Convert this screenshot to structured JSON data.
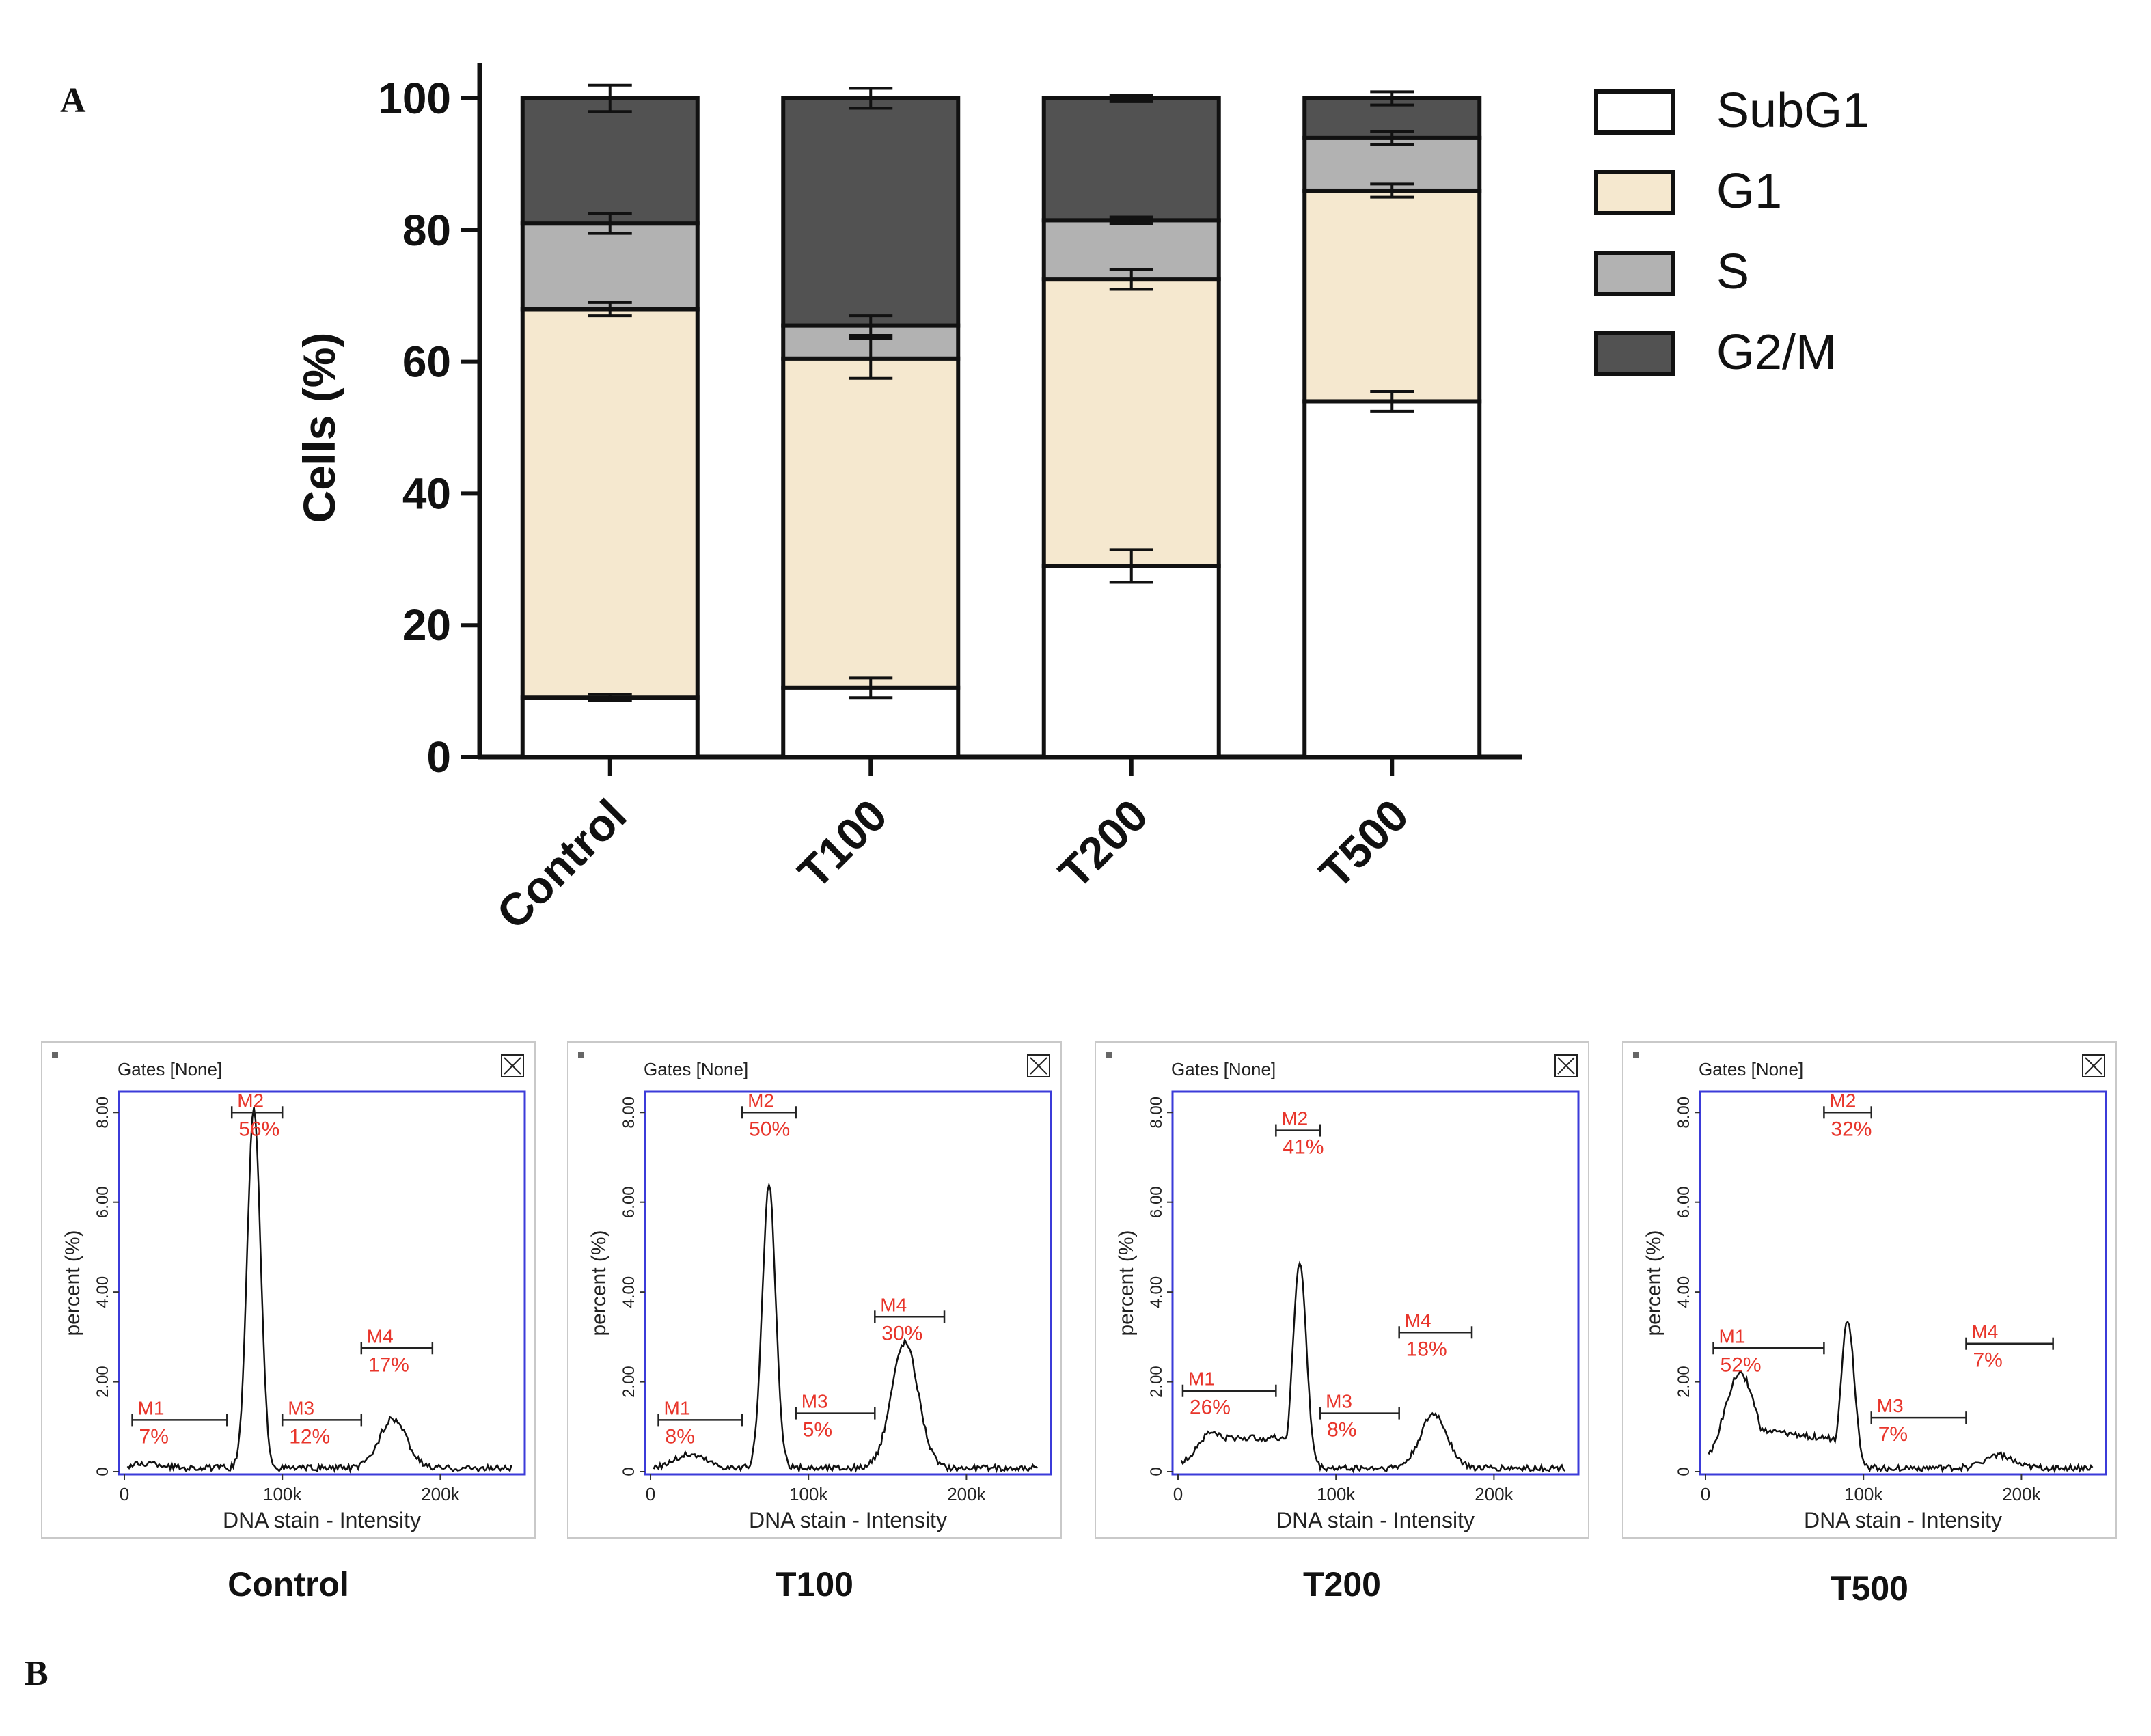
{
  "panel_a_label": "A",
  "panel_b_label": "B",
  "chart_data": [
    {
      "type": "bar",
      "stacked": true,
      "title": "",
      "xlabel": "",
      "ylabel": "Cells (%)",
      "ylim": [
        0,
        100
      ],
      "yticks": [
        "0",
        "20",
        "40",
        "60",
        "80",
        "100"
      ],
      "categories": [
        "Control",
        "T100",
        "T200",
        "T500"
      ],
      "legend_position": "right",
      "series": [
        {
          "name": "SubG1",
          "color": "#ffffff",
          "values": [
            9,
            10.5,
            29,
            54
          ],
          "errors": [
            0.5,
            1.5,
            2.5,
            1.5
          ]
        },
        {
          "name": "G1",
          "color": "#f5e8cf",
          "values": [
            59,
            50,
            43.5,
            32
          ],
          "errors": [
            1.0,
            3.0,
            1.5,
            1.0
          ]
        },
        {
          "name": "S",
          "color": "#b2b2b2",
          "values": [
            13,
            5,
            9,
            8
          ],
          "errors": [
            1.5,
            1.5,
            0.5,
            1.0
          ]
        },
        {
          "name": "G2/M",
          "color": "#525252",
          "values": [
            19,
            34.5,
            18.5,
            6
          ],
          "errors": [
            2.0,
            1.5,
            0.5,
            1.0
          ]
        }
      ]
    },
    {
      "type": "histogram",
      "header": "Gates [None]",
      "xlabel": "DNA stain - Intensity",
      "ylabel": "percent (%)",
      "xticks": [
        "0",
        "100k",
        "200k"
      ],
      "yticks": [
        "0",
        "2.00",
        "4.00",
        "6.00",
        "8.00"
      ],
      "caption": "Control",
      "peaks": [
        [
          15,
          0.1
        ],
        [
          82,
          8.0
        ],
        [
          170,
          1.1
        ]
      ],
      "markers": [
        {
          "label": "M1",
          "pct": "7%",
          "range": [
            5,
            65
          ],
          "y": 1.15
        },
        {
          "label": "M2",
          "pct": "56%",
          "range": [
            68,
            100
          ],
          "y": 8.0
        },
        {
          "label": "M3",
          "pct": "12%",
          "range": [
            100,
            150
          ],
          "y": 1.15
        },
        {
          "label": "M4",
          "pct": "17%",
          "range": [
            150,
            195
          ],
          "y": 2.75
        }
      ]
    },
    {
      "type": "histogram",
      "header": "Gates [None]",
      "xlabel": "DNA stain - Intensity",
      "ylabel": "percent (%)",
      "xticks": [
        "0",
        "100k",
        "200k"
      ],
      "yticks": [
        "0",
        "2.00",
        "4.00",
        "6.00",
        "8.00"
      ],
      "caption": "T100",
      "peaks": [
        [
          25,
          0.3
        ],
        [
          75,
          6.3
        ],
        [
          161,
          2.8
        ]
      ],
      "markers": [
        {
          "label": "M1",
          "pct": "8%",
          "range": [
            5,
            58
          ],
          "y": 1.15
        },
        {
          "label": "M2",
          "pct": "50%",
          "range": [
            58,
            92
          ],
          "y": 8.0
        },
        {
          "label": "M3",
          "pct": "5%",
          "range": [
            92,
            142
          ],
          "y": 1.3
        },
        {
          "label": "M4",
          "pct": "30%",
          "range": [
            142,
            186
          ],
          "y": 3.45
        }
      ]
    },
    {
      "type": "histogram",
      "header": "Gates [None]",
      "xlabel": "DNA stain - Intensity",
      "ylabel": "percent (%)",
      "xticks": [
        "0",
        "100k",
        "200k"
      ],
      "yticks": [
        "0",
        "2.00",
        "4.00",
        "6.00",
        "8.00"
      ],
      "caption": "T200",
      "peaks": [
        [
          22,
          0.8
        ],
        [
          77,
          4.6
        ],
        [
          162,
          1.2
        ]
      ],
      "markers": [
        {
          "label": "M1",
          "pct": "26%",
          "range": [
            3,
            62
          ],
          "y": 1.8
        },
        {
          "label": "M2",
          "pct": "41%",
          "range": [
            62,
            90
          ],
          "y": 7.6
        },
        {
          "label": "M3",
          "pct": "8%",
          "range": [
            90,
            140
          ],
          "y": 1.3
        },
        {
          "label": "M4",
          "pct": "18%",
          "range": [
            140,
            186
          ],
          "y": 3.1
        }
      ]
    },
    {
      "type": "histogram",
      "header": "Gates [None]",
      "xlabel": "DNA stain - Intensity",
      "ylabel": "percent (%)",
      "xticks": [
        "0",
        "100k",
        "200k"
      ],
      "yticks": [
        "0",
        "2.00",
        "4.00",
        "6.00",
        "8.00"
      ],
      "caption": "T500",
      "peaks": [
        [
          22,
          2.1
        ],
        [
          90,
          3.3
        ],
        [
          185,
          0.3
        ]
      ],
      "markers": [
        {
          "label": "M1",
          "pct": "52%",
          "range": [
            5,
            75
          ],
          "y": 2.75
        },
        {
          "label": "M2",
          "pct": "32%",
          "range": [
            75,
            105
          ],
          "y": 8.0
        },
        {
          "label": "M3",
          "pct": "7%",
          "range": [
            105,
            165
          ],
          "y": 1.2
        },
        {
          "label": "M4",
          "pct": "7%",
          "range": [
            165,
            220
          ],
          "y": 2.85
        }
      ]
    }
  ]
}
